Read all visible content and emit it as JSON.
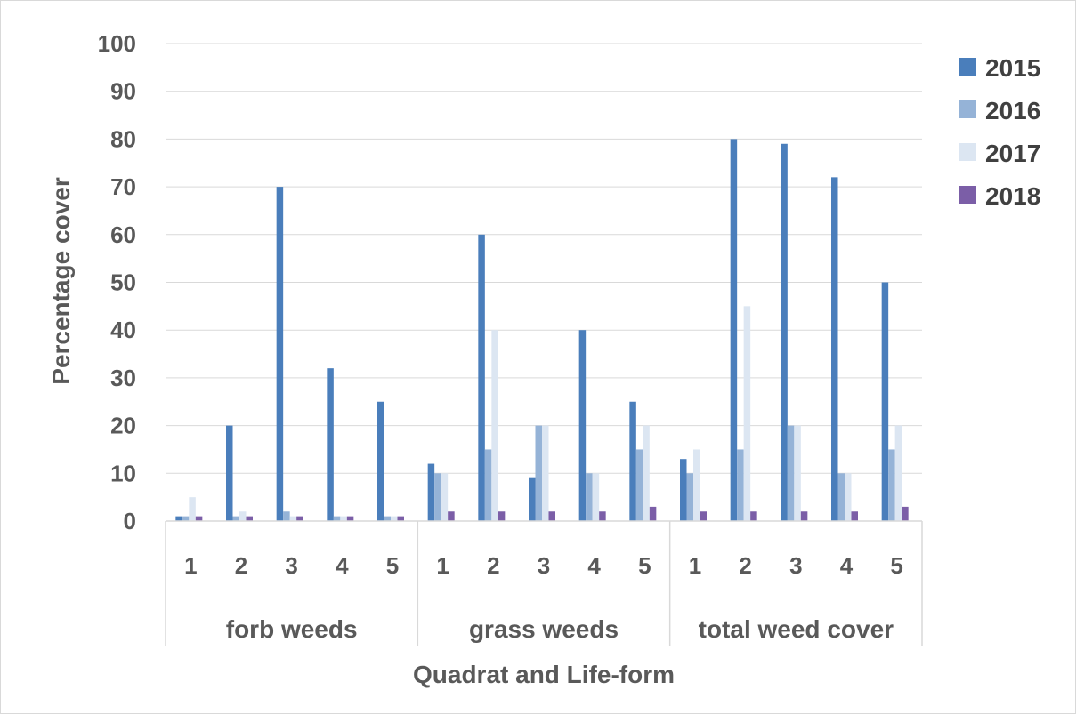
{
  "chart_data": {
    "type": "bar",
    "title": "",
    "xlabel": "Quadrat and Life-form",
    "ylabel": "Percentage cover",
    "ylim": [
      0,
      100
    ],
    "yticks": [
      0,
      10,
      20,
      30,
      40,
      50,
      60,
      70,
      80,
      90,
      100
    ],
    "grid": true,
    "legend_position": "top-right",
    "groups": [
      {
        "label": "forb weeds",
        "categories": [
          "1",
          "2",
          "3",
          "4",
          "5"
        ]
      },
      {
        "label": "grass weeds",
        "categories": [
          "1",
          "2",
          "3",
          "4",
          "5"
        ]
      },
      {
        "label": "total weed cover",
        "categories": [
          "1",
          "2",
          "3",
          "4",
          "5"
        ]
      }
    ],
    "series": [
      {
        "name": "2015",
        "color": "#4a7ebb",
        "values": [
          1,
          20,
          70,
          32,
          25,
          12,
          60,
          9,
          40,
          25,
          13,
          80,
          79,
          72,
          50
        ]
      },
      {
        "name": "2016",
        "color": "#95b3d7",
        "values": [
          1,
          1,
          2,
          1,
          1,
          10,
          15,
          20,
          10,
          15,
          10,
          15,
          20,
          10,
          15
        ]
      },
      {
        "name": "2017",
        "color": "#dce6f2",
        "values": [
          5,
          2,
          1,
          1,
          1,
          10,
          40,
          20,
          10,
          20,
          15,
          45,
          20,
          10,
          20
        ]
      },
      {
        "name": "2018",
        "color": "#7b5ea7",
        "values": [
          1,
          1,
          1,
          1,
          1,
          2,
          2,
          2,
          2,
          3,
          2,
          2,
          2,
          2,
          3
        ]
      }
    ]
  }
}
